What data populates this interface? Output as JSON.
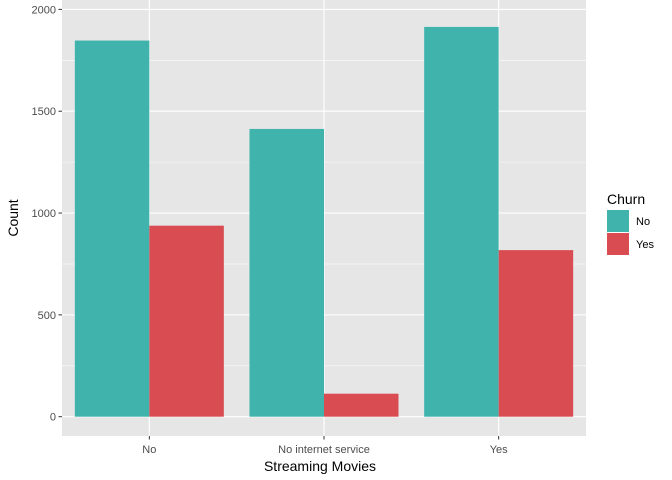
{
  "chart_data": {
    "type": "bar",
    "xlabel": "Streaming Movies",
    "ylabel": "Count",
    "categories": [
      "No",
      "No internet service",
      "Yes"
    ],
    "series": [
      {
        "name": "No",
        "color": "#3fb3ac",
        "values": [
          1847,
          1413,
          1914
        ]
      },
      {
        "name": "Yes",
        "color": "#d94c52",
        "values": [
          938,
          113,
          818
        ]
      }
    ],
    "ylim": [
      0,
      2000
    ],
    "yticks": [
      0,
      500,
      1000,
      1500,
      2000
    ],
    "ytick_labels": [
      "0",
      "500",
      "1000",
      "1500",
      "2000"
    ],
    "grid": true,
    "legend": {
      "title": "Churn",
      "position": "right"
    }
  },
  "colors": {
    "panel_background": "#e6e6e6",
    "grid_major": "#ffffff"
  }
}
